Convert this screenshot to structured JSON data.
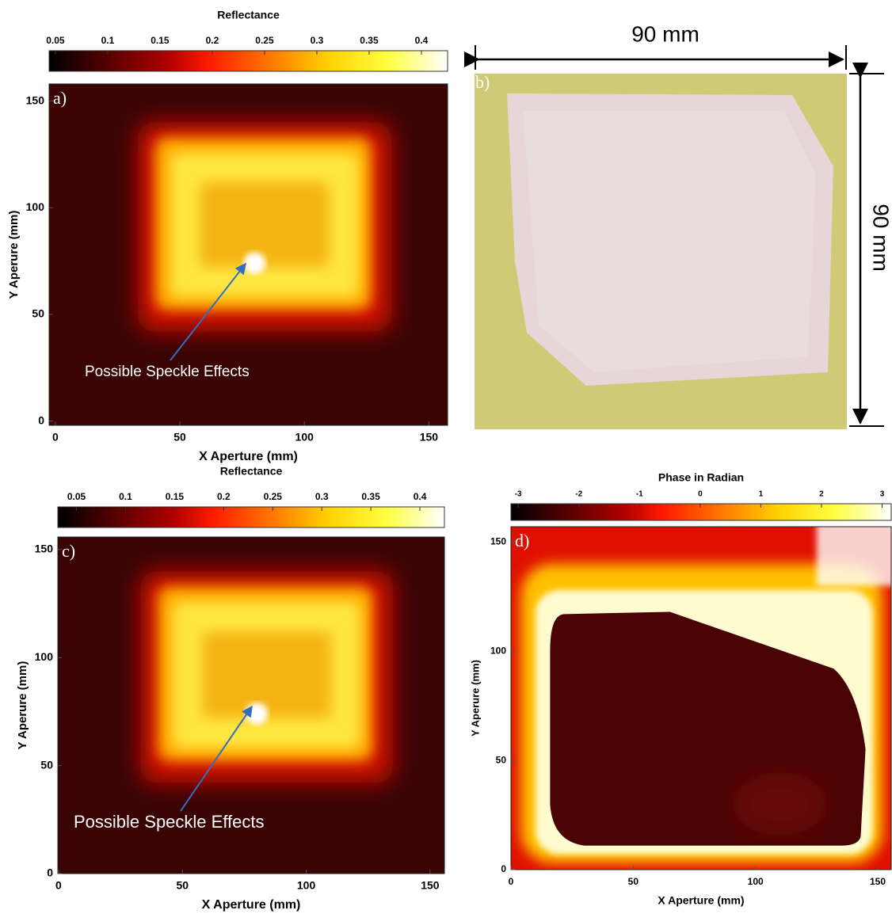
{
  "panels": [
    {
      "label": "a)",
      "colorbar_label": "Reflectance",
      "colorbar_ticks": [
        0.05,
        0.1,
        0.15,
        0.2,
        0.25,
        0.3,
        0.35,
        0.4
      ],
      "colorbar_lim": [
        0.044,
        0.425
      ],
      "x_label": "X Aperture (mm)",
      "y_label": "Y Aperure (mm)",
      "xticks": [
        0,
        50,
        100,
        150
      ],
      "yticks": [
        0,
        50,
        100,
        150
      ],
      "xlim": [
        -2.5,
        157.5
      ],
      "ylim": [
        -2,
        158
      ],
      "annotation": "Possible Speckle Effects"
    },
    {
      "label": "b)",
      "width_label": "90 mm",
      "height_label": "90 mm"
    },
    {
      "label": "c)",
      "colorbar_label": "Reflectance",
      "colorbar_ticks": [
        0.05,
        0.1,
        0.15,
        0.2,
        0.25,
        0.3,
        0.35,
        0.4
      ],
      "colorbar_lim": [
        0.031,
        0.425
      ],
      "x_label": "X Aperture (mm)",
      "y_label": "Y Aperure (mm)",
      "xticks": [
        0,
        50,
        100,
        150
      ],
      "yticks": [
        0,
        50,
        100,
        150
      ],
      "xlim": [
        -0.3,
        155.8
      ],
      "ylim": [
        0,
        155.8
      ],
      "annotation": "Possible Speckle Effects"
    },
    {
      "label": "d)",
      "colorbar_label": "Phase in Radian",
      "colorbar_ticks": [
        -3,
        -2,
        -1,
        0,
        1,
        2,
        3
      ],
      "colorbar_lim": [
        -3.12,
        3.15
      ],
      "x_label": "X Aperture (mm)",
      "y_label": "Y Aperure (mm)",
      "xticks": [
        0,
        50,
        100,
        150
      ],
      "yticks": [
        0,
        50,
        100,
        150
      ],
      "xlim": [
        0,
        155.5
      ],
      "ylim": [
        0,
        157
      ]
    }
  ]
}
